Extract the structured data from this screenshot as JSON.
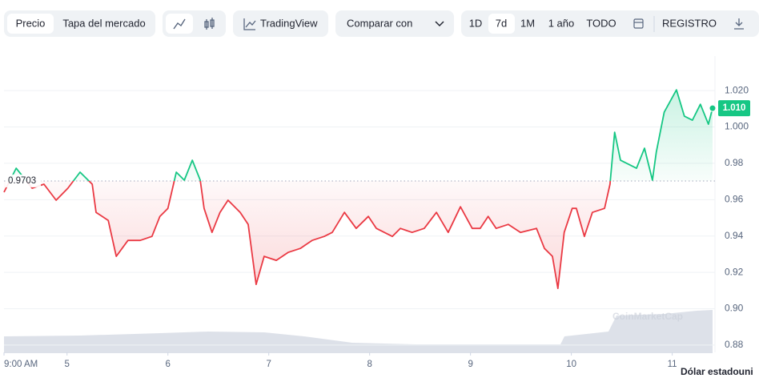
{
  "toolbar": {
    "tabs": [
      "Precio",
      "Tapa del mercado"
    ],
    "tradingview": "TradingView",
    "compare": "Comparar con",
    "ranges": [
      "1D",
      "7d",
      "1M",
      "1 año",
      "TODO"
    ],
    "log": "REGISTRO"
  },
  "chart_data": {
    "type": "line",
    "x": [
      0,
      2.9,
      6.7,
      9.5,
      12.4,
      15.2,
      18.1,
      21.0,
      21.9,
      24.8,
      26.7,
      29.5,
      32.4,
      35.2,
      37.1,
      39.0,
      41.0,
      42.9,
      44.8,
      46.7,
      47.6,
      49.5,
      51.4,
      53.3,
      56.2,
      58.1,
      60.0,
      61.9,
      64.8,
      67.6,
      70.5,
      73.3,
      76.2,
      78.1,
      81.0,
      83.8,
      86.7,
      88.6,
      90.5,
      92.4,
      94.3,
      97.1,
      100.0,
      102.9,
      105.7,
      108.6,
      111.4,
      113.3,
      115.2,
      117.1,
      120.0,
      122.9,
      126.7,
      128.6,
      130.5,
      131.8,
      133.3,
      135.2,
      136.2,
      138.1,
      140.0,
      142.9,
      144.2,
      145.3,
      146.7,
      148.6,
      150.5,
      152.4,
      154.3,
      155.2,
      157.1,
      160.0,
      161.9,
      163.8,
      165.7,
      167.6,
      168.6
    ],
    "values": [
      0.9641,
      0.9773,
      0.9663,
      0.9685,
      0.9597,
      0.9663,
      0.9751,
      0.9685,
      0.953,
      0.9486,
      0.9288,
      0.9376,
      0.9376,
      0.9398,
      0.9508,
      0.9552,
      0.9751,
      0.9707,
      0.9817,
      0.9707,
      0.9552,
      0.942,
      0.953,
      0.9597,
      0.953,
      0.9464,
      0.9134,
      0.9288,
      0.9266,
      0.931,
      0.9332,
      0.9376,
      0.9398,
      0.942,
      0.953,
      0.9442,
      0.9508,
      0.9442,
      0.942,
      0.9398,
      0.9442,
      0.942,
      0.9442,
      0.953,
      0.942,
      0.9561,
      0.9442,
      0.9442,
      0.9508,
      0.9442,
      0.9464,
      0.942,
      0.9442,
      0.9332,
      0.9288,
      0.9112,
      0.942,
      0.9552,
      0.9552,
      0.9398,
      0.953,
      0.9552,
      0.9685,
      0.9971,
      0.9817,
      0.9795,
      0.9773,
      0.9883,
      0.9707,
      0.9861,
      1.0081,
      1.0204,
      1.0059,
      1.0037,
      1.0125,
      1.0015,
      1.0103
    ],
    "current_label": "1.010",
    "baseline": 0.9703,
    "up_color": "#16c784",
    "down_color": "#ea3943",
    "xlim": [
      0,
      168.6
    ],
    "xticks": [
      {
        "value": 0,
        "label": "9:00 AM"
      },
      {
        "value": 15,
        "label": "5"
      },
      {
        "value": 39,
        "label": "6"
      },
      {
        "value": 63,
        "label": "7"
      },
      {
        "value": 87,
        "label": "8"
      },
      {
        "value": 111,
        "label": "9"
      },
      {
        "value": 135,
        "label": "10"
      },
      {
        "value": 159,
        "label": "11"
      }
    ],
    "ylim": [
      0.876,
      1.039
    ],
    "yticks": [
      0.88,
      {
        "value": 0.9,
        "label": "0.90"
      },
      0.92,
      0.94,
      0.96,
      0.98,
      {
        "value": 1,
        "label": "1.000"
      },
      {
        "value": 1.02,
        "label": "1.020"
      }
    ],
    "y_axis_title": "Dólar estadouni",
    "watermark": "CoinMarketCap",
    "grid": true
  }
}
